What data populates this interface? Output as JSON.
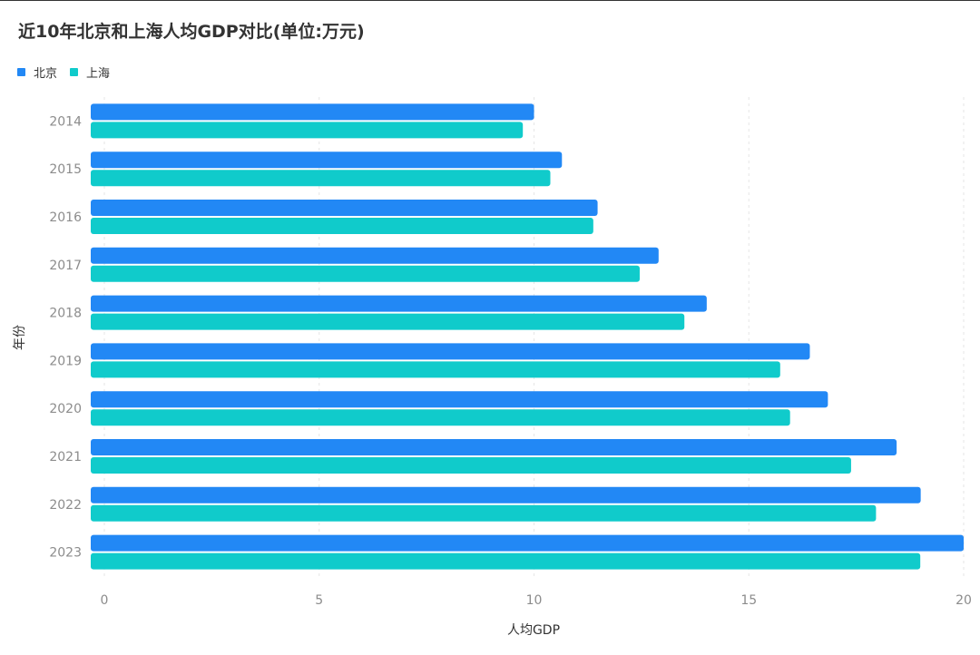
{
  "chart_data": {
    "type": "bar",
    "orientation": "horizontal",
    "title": "近10年北京和上海人均GDP对比(单位:万元)",
    "xlabel": "人均GDP",
    "ylabel": "年份",
    "categories": [
      "2014",
      "2015",
      "2016",
      "2017",
      "2018",
      "2019",
      "2020",
      "2021",
      "2022",
      "2023"
    ],
    "series": [
      {
        "name": "北京",
        "color": "#2288f5",
        "values": [
          10.0,
          10.65,
          11.48,
          12.9,
          14.02,
          16.42,
          16.84,
          18.44,
          19.0,
          20.0
        ]
      },
      {
        "name": "上海",
        "color": "#10cbcb",
        "values": [
          9.74,
          10.38,
          11.38,
          12.46,
          13.5,
          15.73,
          15.96,
          17.38,
          17.96,
          18.99
        ]
      }
    ],
    "xlim": [
      0,
      20
    ],
    "xticks": [
      "0",
      "5",
      "10",
      "15",
      "20"
    ],
    "grid": "vertical dashed",
    "legend": "top-left"
  }
}
